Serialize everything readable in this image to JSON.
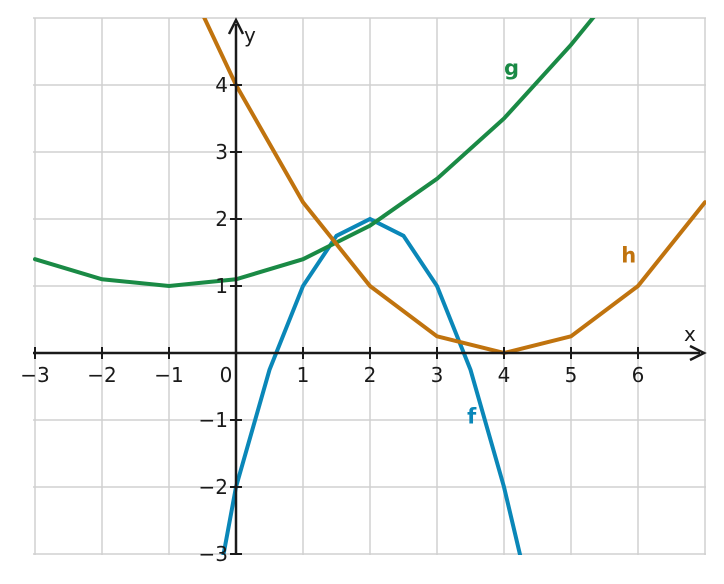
{
  "chart_data": {
    "type": "line",
    "title": "",
    "xlabel": "x",
    "ylabel": "y",
    "xlim": [
      -3,
      7
    ],
    "ylim": [
      -3,
      5
    ],
    "grid": true,
    "x_ticks": [
      -3,
      -2,
      -1,
      0,
      1,
      2,
      3,
      4,
      5,
      6
    ],
    "x_tick_labels": [
      "−3",
      "−2",
      "−1",
      "0",
      "1",
      "2",
      "3",
      "4",
      "5",
      "6"
    ],
    "y_ticks": [
      -3,
      -2,
      -1,
      1,
      2,
      3,
      4
    ],
    "y_tick_labels": [
      "−3",
      "−2",
      "−1",
      "1",
      "2",
      "3",
      "4"
    ],
    "series": [
      {
        "name": "f",
        "color": "#0a87b8",
        "label_pos": [
          3.45,
          -1.05
        ],
        "x": [
          -0.2,
          0,
          0.5,
          1,
          1.5,
          2,
          2.5,
          3,
          3.5,
          4,
          4.25
        ],
        "y": [
          -3.08,
          -2.0,
          -0.25,
          1.0,
          1.75,
          2.0,
          1.75,
          1.0,
          -0.25,
          -2.0,
          -3.06
        ]
      },
      {
        "name": "g",
        "color": "#1a8a45",
        "label_pos": [
          4.0,
          4.15
        ],
        "x": [
          -3,
          -2,
          -1,
          0,
          1,
          2,
          3,
          4,
          5,
          5.35
        ],
        "y": [
          1.4,
          1.1,
          1.0,
          1.1,
          1.4,
          1.9,
          2.6,
          3.5,
          4.6,
          5.03
        ]
      },
      {
        "name": "h",
        "color": "#c0730e",
        "label_pos": [
          5.75,
          1.35
        ],
        "x": [
          -0.5,
          0,
          1,
          2,
          3,
          4,
          5,
          6,
          7
        ],
        "y": [
          5.06,
          4.0,
          2.25,
          1.0,
          0.25,
          0.0,
          0.25,
          1.0,
          2.25
        ]
      }
    ]
  }
}
